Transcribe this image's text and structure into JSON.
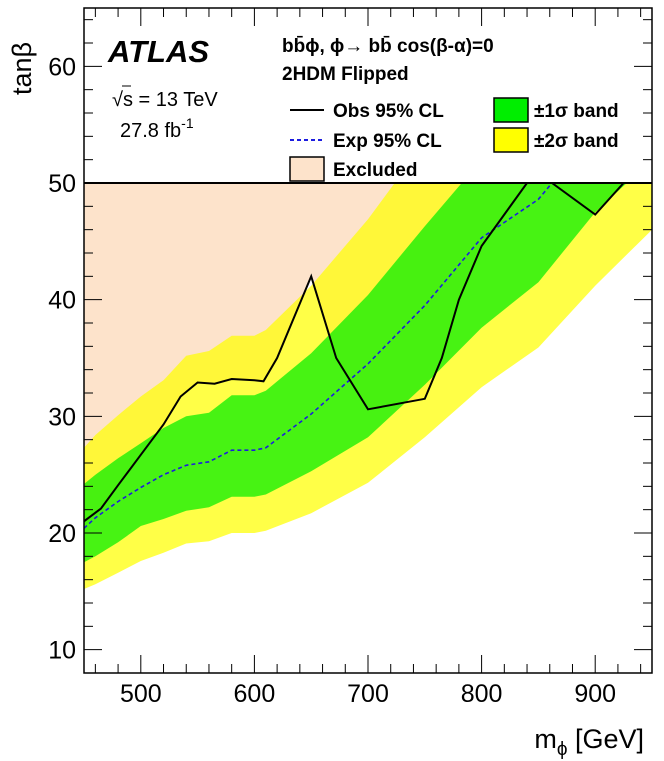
{
  "chart_data": {
    "type": "area",
    "xlabel": "m",
    "xlabel_sub": "ϕ",
    "xlabel_unit": " [GeV]",
    "ylabel": "tan",
    "ylabel_greek": "β",
    "xlim": [
      450,
      950
    ],
    "ylim": [
      8,
      65
    ],
    "x_ticks": [
      500,
      600,
      700,
      800,
      900
    ],
    "y_ticks": [
      10,
      20,
      30,
      40,
      50,
      60
    ],
    "experiment": "ATLAS",
    "energy": {
      "sqrt": "√s",
      "rest": " = 13 TeV"
    },
    "luminosity": {
      "base": "27.8 fb",
      "exp": "-1"
    },
    "process": "bb̄ϕ, ϕ→ bb̄  cos(β-α)=0",
    "model": "2HDM Flipped",
    "legend": {
      "observed": "Obs 95% CL",
      "expected": "Exp 95% CL",
      "excluded": "Excluded",
      "band1": "±1σ band",
      "band2": "±2σ band"
    },
    "limit_line_y": 50,
    "colors": {
      "excluded": "#fde3cb",
      "band1": "#00ee00",
      "band2": "#ffff00",
      "observed": "#000000",
      "expected": "#1c1ce0"
    },
    "series": [
      {
        "name": "Obs 95% CL",
        "x": [
          450,
          465,
          480,
          500,
          520,
          535,
          550,
          565,
          580,
          600,
          608,
          620,
          650,
          672,
          700,
          750,
          765,
          780,
          800,
          840,
          862,
          900,
          925,
          950
        ],
        "y": [
          21.0,
          22.1,
          24.1,
          26.7,
          29.3,
          31.7,
          32.9,
          32.8,
          33.2,
          33.1,
          33.0,
          35.0,
          42.0,
          35.0,
          30.6,
          31.5,
          35.0,
          40.0,
          44.6,
          50.0,
          53.2,
          47.3,
          50.0,
          50.0
        ]
      },
      {
        "name": "Exp 95% CL",
        "x": [
          450,
          460,
          480,
          500,
          520,
          540,
          560,
          580,
          600,
          610,
          650,
          700,
          750,
          800,
          850,
          862
        ],
        "y": [
          20.4,
          21.3,
          22.7,
          23.9,
          25.0,
          25.8,
          26.1,
          27.1,
          27.1,
          27.3,
          30.2,
          34.5,
          39.5,
          45.3,
          48.6,
          50.0
        ]
      }
    ],
    "bands": {
      "x": [
        450,
        460,
        480,
        500,
        520,
        540,
        560,
        580,
        600,
        610,
        650,
        700,
        750,
        800,
        850,
        900,
        950
      ],
      "minus2": [
        15.2,
        15.6,
        16.6,
        17.6,
        18.3,
        19.1,
        19.3,
        20.0,
        20.0,
        20.2,
        21.7,
        24.3,
        28.2,
        32.5,
        35.9,
        41.2,
        46.0
      ],
      "minus1": [
        17.5,
        18.0,
        19.2,
        20.6,
        21.2,
        21.9,
        22.2,
        23.1,
        23.1,
        23.3,
        25.3,
        28.2,
        32.7,
        37.6,
        41.5,
        47.5,
        52.0
      ],
      "plus1": [
        24.2,
        25.0,
        26.4,
        27.7,
        29.0,
        30.0,
        30.3,
        31.8,
        31.8,
        32.2,
        35.4,
        40.4,
        46.3,
        52.0,
        56.0,
        58.0,
        60.0
      ],
      "plus2": [
        27.3,
        28.4,
        30.1,
        31.7,
        33.1,
        35.2,
        35.6,
        36.9,
        36.9,
        37.4,
        41.2,
        46.9,
        53.5,
        58.0,
        60.0,
        62.0,
        64.0
      ]
    }
  }
}
